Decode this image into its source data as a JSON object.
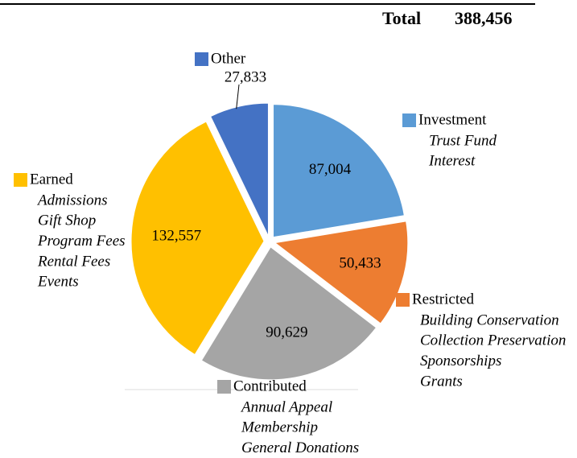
{
  "chart_data": {
    "type": "pie",
    "total": {
      "label": "Total",
      "value": 388456,
      "value_label": "388,456"
    },
    "categories": [
      "Investment",
      "Restricted",
      "Contributed",
      "Earned",
      "Other"
    ],
    "values": [
      87004,
      50433,
      90629,
      132557,
      27833
    ],
    "value_labels": [
      "87,004",
      "50,433",
      "90,629",
      "132,557",
      "27,833"
    ],
    "colors": [
      "#5b9bd5",
      "#ed7d31",
      "#a5a5a5",
      "#ffc000",
      "#4472c4"
    ],
    "details": [
      [
        "Trust Fund",
        "Interest"
      ],
      [
        "Building Conservation",
        "Collection Preservation",
        "Sponsorships",
        "Grants"
      ],
      [
        "Annual Appeal",
        "Membership",
        "General Donations"
      ],
      [
        "Admissions",
        "Gift Shop",
        "Program Fees",
        "Rental Fees",
        "Events"
      ],
      []
    ]
  }
}
